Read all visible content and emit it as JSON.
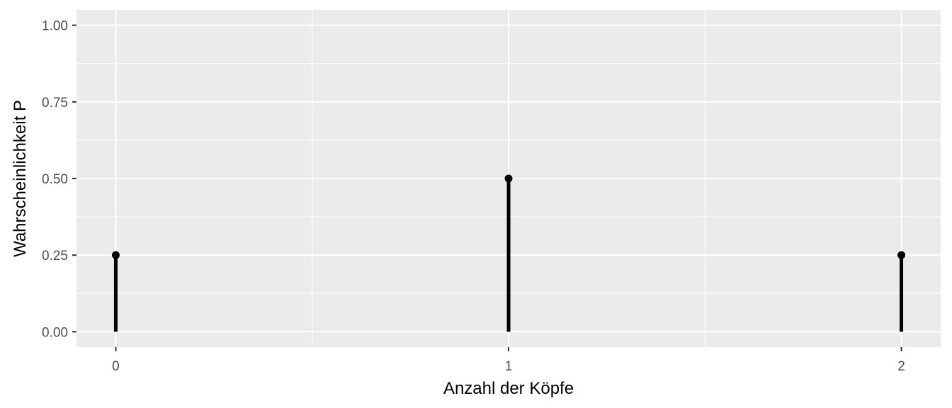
{
  "chart_data": {
    "type": "stem",
    "title": "",
    "xlabel": "Anzahl der Köpfe",
    "ylabel": "Wahrscheinlichkeit P",
    "x": [
      0,
      1,
      2
    ],
    "y": [
      0.25,
      0.5,
      0.25
    ],
    "x_ticks": [
      0,
      1,
      2
    ],
    "x_tick_labels": [
      "0",
      "1",
      "2"
    ],
    "y_ticks": [
      0,
      0.25,
      0.5,
      0.75,
      1.0
    ],
    "y_tick_labels": [
      "0.00",
      "0.25",
      "0.50",
      "0.75",
      "1.00"
    ],
    "xlim": [
      -0.1,
      2.1
    ],
    "ylim": [
      -0.05,
      1.05
    ],
    "grid": true,
    "legend": "none",
    "colors": {
      "panel": "#ebebeb",
      "grid": "#ffffff",
      "mark": "#000000",
      "tick_text": "#4d4d4d",
      "tick": "#333333"
    }
  }
}
